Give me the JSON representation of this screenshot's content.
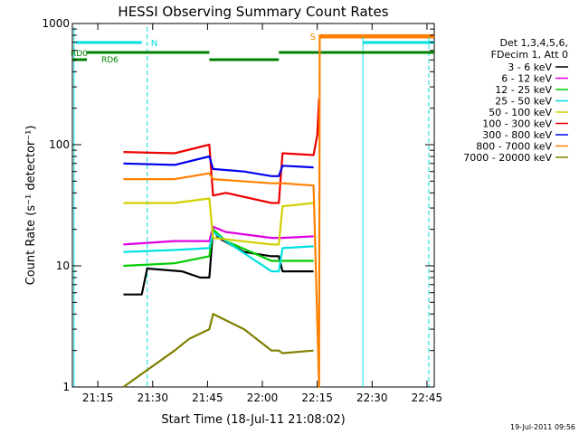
{
  "chart_data": {
    "type": "line",
    "title": "HESSI Observing Summary Count Rates",
    "xlabel": "Start Time (18-Jul-11 21:08:02)",
    "ylabel": "Count Rate (s⁻¹ detector⁻¹)",
    "ylog": true,
    "ylim": [
      1,
      1000
    ],
    "xlim": [
      "21:08:02",
      "22:47:00"
    ],
    "x_ticks": [
      "21:15",
      "21:30",
      "21:45",
      "22:00",
      "22:15",
      "22:30",
      "22:45"
    ],
    "y_ticks": [
      "1",
      "10",
      "100",
      "1000"
    ],
    "stamp": "19-Jul-2011 09:56",
    "legend": {
      "placement": "right",
      "header": [
        "Det 1,3,4,5,6,",
        "FDecim 1, Att 0"
      ]
    },
    "flags": [
      {
        "label": "N"
      },
      {
        "label": "S"
      },
      {
        "label": "RD0"
      },
      {
        "label": "RD6"
      }
    ],
    "series": [
      {
        "name": "3 - 6 keV",
        "color": "#000000",
        "points": [
          [
            "21:22:00",
            5.8
          ],
          [
            "21:27:00",
            5.8
          ],
          [
            "21:28:30",
            9.5
          ],
          [
            "21:38:00",
            9
          ],
          [
            "21:43:00",
            8
          ],
          [
            "21:45:30",
            8
          ],
          [
            "21:46:30",
            20
          ],
          [
            "21:48:00",
            17
          ],
          [
            "21:55:00",
            13
          ],
          [
            "22:02:30",
            12
          ],
          [
            "22:04:30",
            12
          ],
          [
            "22:05:30",
            9
          ],
          [
            "22:14:00",
            9
          ]
        ]
      },
      {
        "name": "6 - 12 keV",
        "color": "#e000e0",
        "points": [
          [
            "21:22:00",
            15
          ],
          [
            "21:36:00",
            16
          ],
          [
            "21:45:30",
            16
          ],
          [
            "21:46:30",
            21
          ],
          [
            "21:50:00",
            19
          ],
          [
            "22:02:30",
            17
          ],
          [
            "22:04:30",
            17
          ],
          [
            "22:05:30",
            17
          ],
          [
            "22:14:00",
            17.5
          ]
        ]
      },
      {
        "name": "12 - 25 keV",
        "color": "#00cc00",
        "points": [
          [
            "21:22:00",
            10
          ],
          [
            "21:36:00",
            10.5
          ],
          [
            "21:45:30",
            12
          ],
          [
            "21:46:30",
            20
          ],
          [
            "21:50:00",
            16
          ],
          [
            "22:02:30",
            11
          ],
          [
            "22:04:30",
            11
          ],
          [
            "22:05:30",
            11
          ],
          [
            "22:14:00",
            11
          ]
        ]
      },
      {
        "name": "25 - 50 keV",
        "color": "#00e0e0",
        "points": [
          [
            "21:22:00",
            13
          ],
          [
            "21:36:00",
            13.5
          ],
          [
            "21:45:30",
            14
          ],
          [
            "21:46:30",
            19
          ],
          [
            "21:50:00",
            16
          ],
          [
            "22:02:30",
            9
          ],
          [
            "22:04:30",
            9
          ],
          [
            "22:05:30",
            14
          ],
          [
            "22:14:00",
            14.5
          ]
        ]
      },
      {
        "name": "50 - 100 keV",
        "color": "#d0d000",
        "points": [
          [
            "21:22:00",
            33
          ],
          [
            "21:36:00",
            33
          ],
          [
            "21:45:30",
            36
          ],
          [
            "21:46:30",
            17
          ],
          [
            "22:02:30",
            15
          ],
          [
            "22:04:30",
            15
          ],
          [
            "22:05:30",
            31
          ],
          [
            "22:14:00",
            33
          ]
        ]
      },
      {
        "name": "100 - 300 keV",
        "color": "#ee0000",
        "points": [
          [
            "21:22:00",
            87
          ],
          [
            "21:36:00",
            85
          ],
          [
            "21:45:30",
            100
          ],
          [
            "21:46:30",
            38
          ],
          [
            "21:50:00",
            40
          ],
          [
            "22:02:30",
            33
          ],
          [
            "22:04:30",
            33
          ],
          [
            "22:05:30",
            85
          ],
          [
            "22:14:00",
            82
          ],
          [
            "22:15:00",
            120
          ],
          [
            "22:15:30",
            240
          ]
        ]
      },
      {
        "name": "300 - 800 keV",
        "color": "#0000ee",
        "points": [
          [
            "21:22:00",
            70
          ],
          [
            "21:36:00",
            68
          ],
          [
            "21:45:30",
            80
          ],
          [
            "21:46:30",
            63
          ],
          [
            "21:55:00",
            60
          ],
          [
            "22:02:30",
            55
          ],
          [
            "22:04:30",
            55
          ],
          [
            "22:05:30",
            67
          ],
          [
            "22:14:00",
            65
          ]
        ]
      },
      {
        "name": "800 - 7000 keV",
        "color": "#ff8000",
        "points": [
          [
            "21:22:00",
            52
          ],
          [
            "21:36:00",
            52
          ],
          [
            "21:45:30",
            58
          ],
          [
            "21:46:30",
            52
          ],
          [
            "22:02:30",
            48
          ],
          [
            "22:04:30",
            48
          ],
          [
            "22:05:30",
            48
          ],
          [
            "22:14:00",
            46
          ],
          [
            "22:15:30",
            1
          ],
          [
            "22:15:40",
            800
          ],
          [
            "22:47:00",
            800
          ]
        ]
      },
      {
        "name": "7000 - 20000 keV",
        "color": "#808000",
        "points": [
          [
            "21:22:00",
            1
          ],
          [
            "21:36:00",
            2
          ],
          [
            "21:40:00",
            2.5
          ],
          [
            "21:45:30",
            3
          ],
          [
            "21:46:30",
            4
          ],
          [
            "21:55:00",
            3
          ],
          [
            "22:02:30",
            2
          ],
          [
            "22:04:30",
            2
          ],
          [
            "22:05:30",
            1.9
          ],
          [
            "22:14:00",
            2
          ]
        ]
      }
    ]
  }
}
